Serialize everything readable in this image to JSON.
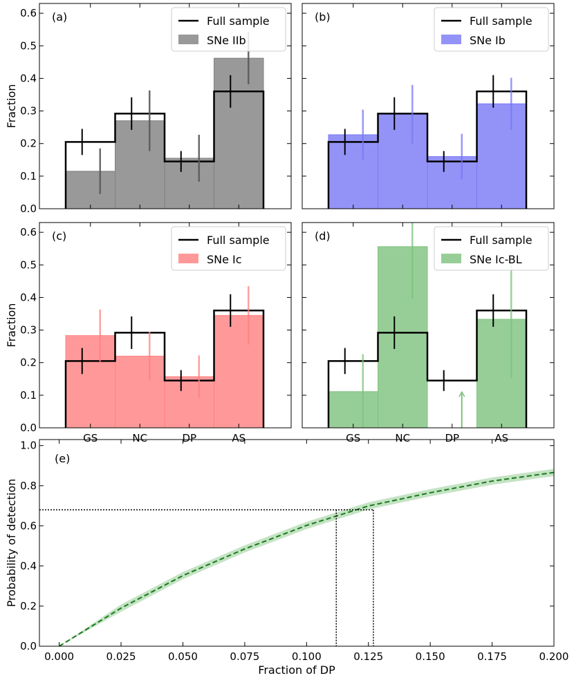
{
  "chart_data": [
    {
      "type": "bar",
      "panel": "(a)",
      "categories": [
        "GS",
        "NC",
        "DP",
        "AS"
      ],
      "ylabel": "Fraction",
      "ylim": [
        0,
        0.63
      ],
      "yticks": [
        "0.0",
        "0.1",
        "0.2",
        "0.3",
        "0.4",
        "0.5",
        "0.6"
      ],
      "color": "#808080",
      "series": [
        {
          "name": "Full sample",
          "values": [
            0.205,
            0.292,
            0.145,
            0.36
          ],
          "err": [
            0.04,
            0.05,
            0.032,
            0.05
          ]
        },
        {
          "name": "SNe IIb",
          "values": [
            0.115,
            0.27,
            0.155,
            0.462
          ],
          "err": [
            0.07,
            0.093,
            0.072,
            0.08
          ]
        }
      ]
    },
    {
      "type": "bar",
      "panel": "(b)",
      "categories": [
        "GS",
        "NC",
        "DP",
        "AS"
      ],
      "ylabel": "",
      "ylim": [
        0,
        0.63
      ],
      "color": "#7878f5",
      "series": [
        {
          "name": "Full sample",
          "values": [
            0.205,
            0.292,
            0.145,
            0.36
          ],
          "err": [
            0.04,
            0.05,
            0.032,
            0.05
          ]
        },
        {
          "name": "SNe Ib",
          "values": [
            0.227,
            0.29,
            0.16,
            0.322
          ],
          "err": [
            0.077,
            0.09,
            0.07,
            0.08
          ]
        }
      ]
    },
    {
      "type": "bar",
      "panel": "(c)",
      "categories": [
        "GS",
        "NC",
        "DP",
        "AS"
      ],
      "ylabel": "Fraction",
      "ylim": [
        0,
        0.63
      ],
      "yticks": [
        "0.0",
        "0.1",
        "0.2",
        "0.3",
        "0.4",
        "0.5",
        "0.6"
      ],
      "xticks": [
        "GS",
        "NC",
        "DP",
        "AS"
      ],
      "color": "#ff8080",
      "series": [
        {
          "name": "Full sample",
          "values": [
            0.205,
            0.292,
            0.145,
            0.36
          ],
          "err": [
            0.04,
            0.05,
            0.032,
            0.05
          ]
        },
        {
          "name": "SNe Ic",
          "values": [
            0.283,
            0.22,
            0.157,
            0.345
          ],
          "err": [
            0.08,
            0.075,
            0.065,
            0.09
          ]
        }
      ]
    },
    {
      "type": "bar",
      "panel": "(d)",
      "categories": [
        "GS",
        "NC",
        "DP",
        "AS"
      ],
      "ylabel": "",
      "ylim": [
        0,
        0.63
      ],
      "xticks": [
        "GS",
        "NC",
        "DP",
        "AS"
      ],
      "color": "#7dc27d",
      "series": [
        {
          "name": "Full sample",
          "values": [
            0.205,
            0.292,
            0.145,
            0.36
          ],
          "err": [
            0.04,
            0.05,
            0.032,
            0.05
          ]
        },
        {
          "name": "SNe Ic-BL",
          "values": [
            0.111,
            0.556,
            0.0,
            0.333
          ],
          "err": [
            0.115,
            0.16,
            0.0,
            0.18
          ],
          "upper_limit": [
            false,
            false,
            true,
            false
          ]
        }
      ]
    },
    {
      "type": "line",
      "panel": "(e)",
      "xlabel": "Fraction of DP",
      "ylabel": "Probability of detection",
      "xlim": [
        -0.008,
        0.2
      ],
      "ylim": [
        0,
        1.03
      ],
      "xticks": [
        "0.000",
        "0.025",
        "0.050",
        "0.075",
        "0.100",
        "0.125",
        "0.150",
        "0.175",
        "0.200"
      ],
      "yticks": [
        "0.0",
        "0.2",
        "0.4",
        "0.6",
        "0.8",
        "1.0"
      ],
      "series": [
        {
          "name": "Detection probability",
          "x": [
            0,
            0.025,
            0.05,
            0.075,
            0.1,
            0.125,
            0.15,
            0.175,
            0.2
          ],
          "y": [
            0.0,
            0.19,
            0.352,
            0.485,
            0.602,
            0.699,
            0.765,
            0.823,
            0.866
          ]
        }
      ],
      "band_halfwidth": 0.018,
      "reference": {
        "y": 0.68,
        "x_low": 0.112,
        "x_high": 0.127
      }
    }
  ]
}
